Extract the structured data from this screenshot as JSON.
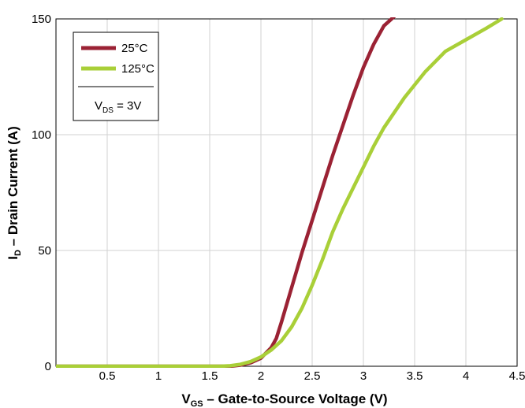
{
  "chart_data": {
    "type": "line",
    "title": "",
    "xlabel": {
      "main": "V",
      "sub": "GS",
      "rest": " – Gate-to-Source Voltage (V)"
    },
    "ylabel": {
      "main": "I",
      "sub": "D",
      "rest": " – Drain Current (A)"
    },
    "xlim": [
      0,
      4.5
    ],
    "ylim": [
      0,
      150
    ],
    "x_ticks": [
      0.5,
      1,
      1.5,
      2,
      2.5,
      3,
      3.5,
      4,
      4.5
    ],
    "x_tick_labels": [
      "0.5",
      "1",
      "1.5",
      "2",
      "2.5",
      "3",
      "3.5",
      "4",
      "4.5"
    ],
    "y_ticks": [
      0,
      50,
      100,
      150
    ],
    "y_tick_labels": [
      "0",
      "50",
      "100",
      "150"
    ],
    "grid": true,
    "legend_position": "top-left",
    "legend_note": {
      "main": "V",
      "sub": "DS",
      "rest": " = 3V"
    },
    "series": [
      {
        "name": "25°C",
        "color": "#9b2234",
        "x": [
          0,
          1.5,
          1.7,
          1.8,
          1.9,
          2.0,
          2.1,
          2.15,
          2.2,
          2.3,
          2.4,
          2.5,
          2.6,
          2.7,
          2.8,
          2.9,
          3.0,
          3.1,
          3.2,
          3.3
        ],
        "y": [
          0,
          0,
          0,
          0.5,
          1.5,
          3.5,
          8,
          12,
          19,
          34,
          49,
          63,
          77,
          91,
          104,
          117,
          129,
          139,
          147,
          151
        ]
      },
      {
        "name": "125°C",
        "color": "#a9cf38",
        "x": [
          0,
          1.6,
          1.7,
          1.8,
          1.9,
          2.0,
          2.1,
          2.2,
          2.3,
          2.4,
          2.5,
          2.6,
          2.7,
          2.8,
          2.9,
          3.0,
          3.1,
          3.2,
          3.4,
          3.6,
          3.8,
          4.0,
          4.2,
          4.35
        ],
        "y": [
          0,
          0,
          0.2,
          0.8,
          2,
          4,
          7,
          11,
          17,
          25,
          35,
          46,
          58,
          68,
          77,
          86,
          95,
          103,
          116,
          127,
          136,
          141,
          146,
          150
        ]
      }
    ]
  }
}
